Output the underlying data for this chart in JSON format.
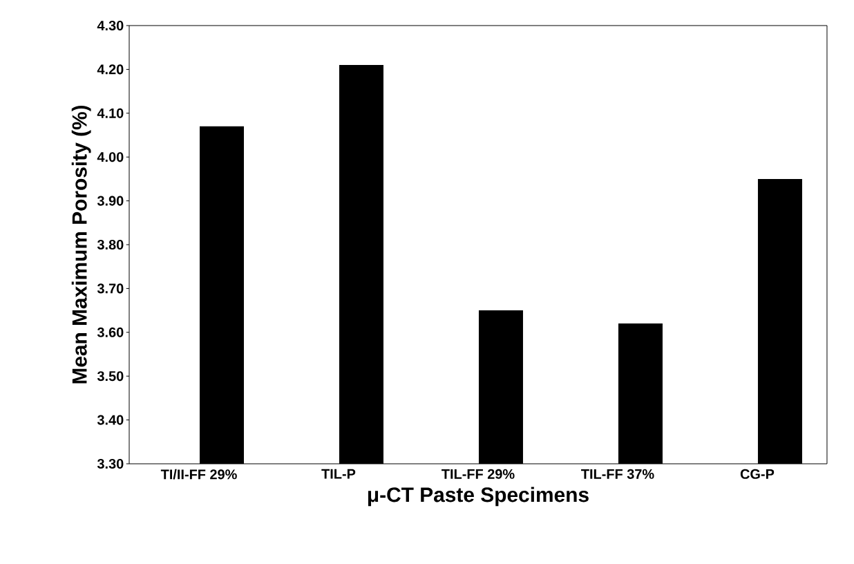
{
  "chart_data": {
    "type": "bar",
    "xlabel": "μ-CT Paste Specimens",
    "ylabel": "Mean Maximum Porosity (%)",
    "categories": [
      "TI/II-FF 29%",
      "TIL-P",
      "TIL-FF 29%",
      "TIL-FF 37%",
      "CG-P"
    ],
    "values": [
      4.07,
      4.21,
      3.65,
      3.62,
      3.95
    ],
    "color": "#000000",
    "ylim": [
      3.3,
      4.3
    ],
    "yticks": [
      {
        "value": 3.3,
        "label": "3.30"
      },
      {
        "value": 3.4,
        "label": "3.40"
      },
      {
        "value": 3.5,
        "label": "3.50"
      },
      {
        "value": 3.6,
        "label": "3.60"
      },
      {
        "value": 3.7,
        "label": "3.70"
      },
      {
        "value": 3.8,
        "label": "3.80"
      },
      {
        "value": 3.9,
        "label": "3.90"
      },
      {
        "value": 4.0,
        "label": "4.00"
      },
      {
        "value": 4.1,
        "label": "4.10"
      },
      {
        "value": 4.2,
        "label": "4.20"
      },
      {
        "value": 4.3,
        "label": "4.30"
      }
    ],
    "grid": false
  }
}
